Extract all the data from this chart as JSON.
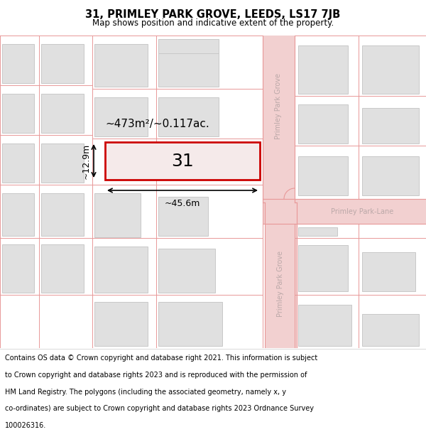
{
  "title_line1": "31, PRIMLEY PARK GROVE, LEEDS, LS17 7JB",
  "title_line2": "Map shows position and indicative extent of the property.",
  "map_bg": "#f7f3f3",
  "road_fill": "#f2d0d0",
  "road_edge": "#e89898",
  "plot_line": "#e89898",
  "building_fill": "#e0e0e0",
  "building_edge": "#c8c8c8",
  "highlight_fill": "#f5eaea",
  "highlight_edge": "#cc0000",
  "street_color": "#bba8a8",
  "area_text": "~473m²/~0.117ac.",
  "number_text": "31",
  "width_label": "~45.6m",
  "height_label": "~12.9m",
  "title_fontsize": 10.5,
  "subtitle_fontsize": 8.5,
  "footer_fontsize": 7.0,
  "footer_lines": [
    "Contains OS data © Crown copyright and database right 2021. This information is subject",
    "to Crown copyright and database rights 2023 and is reproduced with the permission of",
    "HM Land Registry. The polygons (including the associated geometry, namely x, y",
    "co-ordinates) are subject to Crown copyright and database rights 2023 Ordnance Survey",
    "100026316."
  ]
}
